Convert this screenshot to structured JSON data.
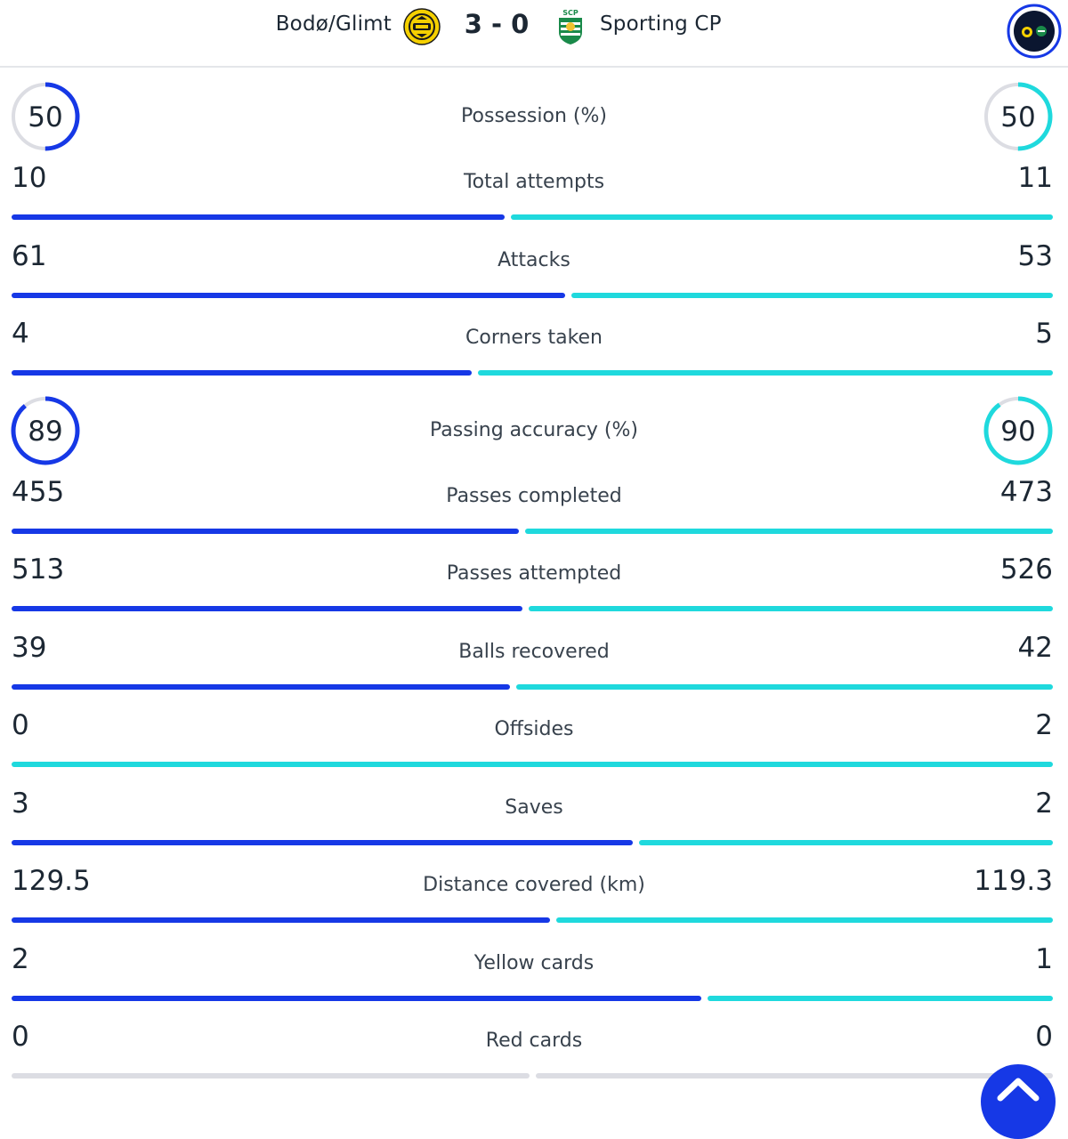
{
  "header": {
    "home_team": "Bodø/Glimt",
    "away_team": "Sporting CP",
    "score": "3 - 0",
    "home_crest_icon": "bodo-glimt-crest-icon",
    "away_crest_icon": "sporting-cp-crest-icon",
    "away_crest_text": "SCP"
  },
  "colors": {
    "home": "#1638e6",
    "away": "#1fd9dd",
    "empty": "#dcdde3",
    "text": "#1c2733"
  },
  "stats": [
    {
      "label": "Possession (%)",
      "home": "50",
      "away": "50",
      "type": "ring",
      "home_pct": 0.5,
      "away_pct": 0.5
    },
    {
      "label": "Total attempts",
      "home": "10",
      "away": "11",
      "type": "bar"
    },
    {
      "label": "Attacks",
      "home": "61",
      "away": "53",
      "type": "bar"
    },
    {
      "label": "Corners taken",
      "home": "4",
      "away": "5",
      "type": "bar"
    },
    {
      "label": "Passing accuracy (%)",
      "home": "89",
      "away": "90",
      "type": "ring",
      "home_pct": 0.89,
      "away_pct": 0.9
    },
    {
      "label": "Passes completed",
      "home": "455",
      "away": "473",
      "type": "bar"
    },
    {
      "label": "Passes attempted",
      "home": "513",
      "away": "526",
      "type": "bar"
    },
    {
      "label": "Balls recovered",
      "home": "39",
      "away": "42",
      "type": "bar"
    },
    {
      "label": "Offsides",
      "home": "0",
      "away": "2",
      "type": "bar"
    },
    {
      "label": "Saves",
      "home": "3",
      "away": "2",
      "type": "bar"
    },
    {
      "label": "Distance covered (km)",
      "home": "129.5",
      "away": "119.3",
      "type": "bar"
    },
    {
      "label": "Yellow cards",
      "home": "2",
      "away": "1",
      "type": "bar"
    },
    {
      "label": "Red cards",
      "home": "0",
      "away": "0",
      "type": "bar"
    }
  ],
  "buttons": {
    "switch_icon": "team-switch-icon",
    "scroll_top_icon": "chevron-up-icon"
  }
}
